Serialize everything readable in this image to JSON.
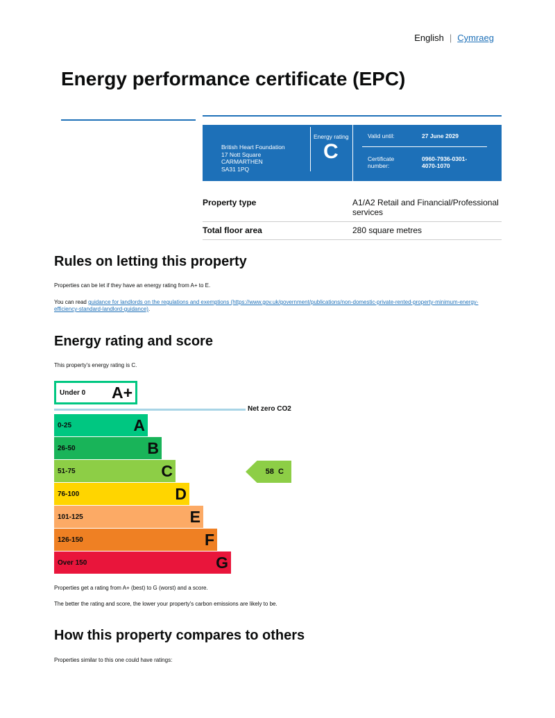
{
  "lang": {
    "english": "English",
    "welsh": "Cymraeg"
  },
  "title": "Energy performance certificate (EPC)",
  "certificate": {
    "address": [
      "British Heart Foundation",
      "17 Nott Square",
      "CARMARTHEN",
      "SA31 1PQ"
    ],
    "energy_rating_label": "Energy rating",
    "energy_rating": "C",
    "valid_until_label": "Valid until:",
    "valid_until": "27 June 2029",
    "certificate_number_label": "Certificate number:",
    "certificate_number": "0960-7936-0301-4070-1070"
  },
  "property": [
    {
      "label": "Property type",
      "value": "A1/A2 Retail and Financial/Professional services"
    },
    {
      "label": "Total floor area",
      "value": "280 square metres"
    }
  ],
  "rules": {
    "heading": "Rules on letting this property",
    "p1": "Properties can be let if they have an energy rating from A+ to E.",
    "p2_prefix": "You can read ",
    "link": "guidance for landlords on the regulations and exemptions",
    "url_text": " (https://www.gov.uk/government/publications/non-domestic-private-rented-property-minimum-energy-efficiency-standard-landlord-guidance)",
    "p2_suffix": "."
  },
  "rating": {
    "heading": "Energy rating and score",
    "intro": "This property's energy rating is C.",
    "net_zero": "Net zero CO2",
    "bands": [
      {
        "range": "Under 0",
        "letter": "A+",
        "color": "#00c781"
      },
      {
        "range": "0-25",
        "letter": "A",
        "color": "#00c781"
      },
      {
        "range": "26-50",
        "letter": "B",
        "color": "#19b459"
      },
      {
        "range": "51-75",
        "letter": "C",
        "color": "#8dce46"
      },
      {
        "range": "76-100",
        "letter": "D",
        "color": "#ffd500"
      },
      {
        "range": "101-125",
        "letter": "E",
        "color": "#fcaa65"
      },
      {
        "range": "126-150",
        "letter": "F",
        "color": "#ef8023"
      },
      {
        "range": "Over 150",
        "letter": "G",
        "color": "#e9153b"
      }
    ],
    "score": "58",
    "score_letter": "C",
    "score_color": "#8dce46",
    "note1": "Properties get a rating from A+ (best) to G (worst) and a score.",
    "note2": "The better the rating and score, the lower your property's carbon emissions are likely to be."
  },
  "compare": {
    "heading": "How this property compares to others",
    "intro": "Properties similar to this one could have ratings:"
  }
}
